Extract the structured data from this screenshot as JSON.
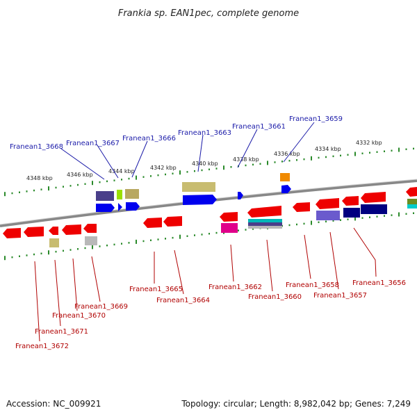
{
  "title": "Frankia sp. EAN1pec, complete genome",
  "footer": {
    "accession": "Accession: NC_009921",
    "summary": "Topology: circular; Length: 8,982,042 bp; Genes: 7,249"
  },
  "kbp_ticks": [
    "4348 kbp",
    "4346 kbp",
    "4344 kbp",
    "4342 kbp",
    "4340 kbp",
    "4338 kbp",
    "4336 kbp",
    "4334 kbp",
    "4332 kbp"
  ],
  "genes_top": [
    "Franean1_3668",
    "Franean1_3667",
    "Franean1_3666",
    "Franean1_3663",
    "Franean1_3661",
    "Franean1_3659"
  ],
  "genes_bottom": [
    "Franean1_3672",
    "Franean1_3671",
    "Franean1_3670",
    "Franean1_3669",
    "Franean1_3665",
    "Franean1_3664",
    "Franean1_3662",
    "Franean1_3660",
    "Franean1_3658",
    "Franean1_3657",
    "Franean1_3656"
  ],
  "colors": {
    "forward_strand": "#0000ee",
    "reverse_strand": "#ee0000",
    "backbone": "#888888",
    "tick": "#2a8a2a",
    "label_top": "#1a1aa8",
    "label_bottom": "#b00000"
  }
}
